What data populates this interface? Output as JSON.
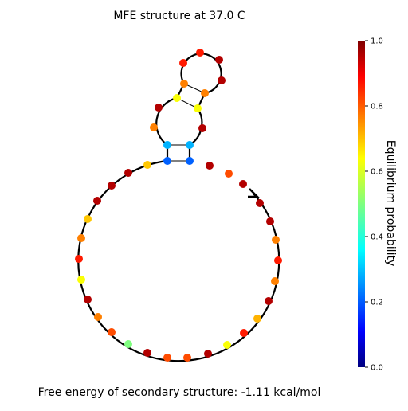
{
  "title": "MFE structure at 37.0 C",
  "footer": "Free energy of secondary structure: -1.11 kcal/mol",
  "colorbar": {
    "label": "Equilibrium probability",
    "lim": [
      0,
      1
    ],
    "ticks": [
      {
        "value": 0,
        "label": "0.0"
      },
      {
        "value": 0.2,
        "label": "0.2"
      },
      {
        "value": 0.4,
        "label": "0.4"
      },
      {
        "value": 0.6,
        "label": "0.6"
      },
      {
        "value": 0.8,
        "label": "0.8"
      },
      {
        "value": 1,
        "label": "1.0"
      }
    ]
  },
  "probabilities": [
    0.95,
    0.95,
    0.75,
    0.85,
    0.75,
    0.95,
    0.7,
    0.85,
    0.62,
    0.95,
    0.8,
    0.8,
    0.95,
    0.5,
    0.8,
    0.75,
    0.95,
    0.62,
    0.85,
    0.75,
    0.68,
    0.95,
    0.95,
    0.95,
    0.68,
    0.22,
    0.3,
    0.75,
    0.95,
    0.62,
    0.75,
    0.85,
    0.85,
    0.95,
    0.95,
    0.75,
    0.62,
    0.95,
    0.3,
    0.22,
    0.95,
    0.8,
    0.95
  ]
}
